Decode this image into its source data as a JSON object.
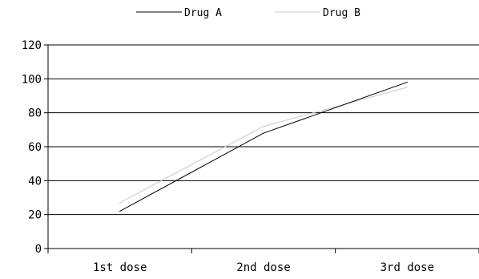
{
  "chart_data": {
    "type": "line",
    "categories": [
      "1st dose",
      "2nd dose",
      "3rd dose"
    ],
    "series": [
      {
        "name": "Drug A",
        "values": [
          22,
          68,
          98
        ],
        "color": "#000000"
      },
      {
        "name": "Drug B",
        "values": [
          27,
          72,
          95
        ],
        "color": "#c8c8c8"
      }
    ],
    "yticks": [
      "0",
      "20",
      "40",
      "60",
      "80",
      "100",
      "120"
    ],
    "ylim": [
      0,
      120
    ],
    "grid": true,
    "legend_position": "top-center",
    "title": "",
    "xlabel": "",
    "ylabel": ""
  }
}
